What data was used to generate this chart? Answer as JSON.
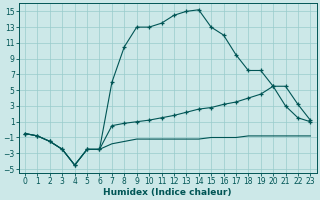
{
  "bg_color": "#cce8e8",
  "grid_color": "#99cccc",
  "line_color": "#005555",
  "xlabel": "Humidex (Indice chaleur)",
  "xlim": [
    -0.5,
    23.5
  ],
  "ylim": [
    -5.5,
    16.0
  ],
  "xticks": [
    0,
    1,
    2,
    3,
    4,
    5,
    6,
    7,
    8,
    9,
    10,
    11,
    12,
    13,
    14,
    15,
    16,
    17,
    18,
    19,
    20,
    21,
    22,
    23
  ],
  "yticks": [
    -5,
    -3,
    -1,
    1,
    3,
    5,
    7,
    9,
    11,
    13,
    15
  ],
  "curve1_x": [
    0,
    1,
    2,
    3,
    4,
    5,
    6,
    7,
    8,
    9,
    10,
    11,
    12,
    13,
    14,
    15,
    16,
    17,
    18,
    19,
    20,
    21,
    22,
    23
  ],
  "curve1_y": [
    -0.5,
    -0.8,
    -1.5,
    -2.5,
    -4.5,
    -2.5,
    -2.5,
    6.0,
    10.5,
    13.0,
    13.0,
    13.5,
    14.5,
    15.0,
    15.2,
    13.0,
    12.0,
    9.5,
    7.5,
    7.5,
    5.5,
    3.0,
    1.5,
    1.0
  ],
  "curve2_x": [
    0,
    1,
    2,
    3,
    4,
    5,
    6,
    7,
    8,
    9,
    10,
    11,
    12,
    13,
    14,
    15,
    16,
    17,
    18,
    19,
    20,
    21,
    22,
    23
  ],
  "curve2_y": [
    -0.5,
    -0.8,
    -1.5,
    -2.5,
    -4.5,
    -2.5,
    -2.5,
    0.5,
    0.8,
    1.0,
    1.2,
    1.5,
    1.8,
    2.2,
    2.6,
    2.8,
    3.2,
    3.5,
    4.0,
    4.5,
    5.5,
    5.5,
    3.2,
    1.2
  ],
  "curve3_x": [
    0,
    1,
    2,
    3,
    4,
    5,
    6,
    7,
    8,
    9,
    10,
    11,
    12,
    13,
    14,
    15,
    16,
    17,
    18,
    19,
    20,
    21,
    22,
    23
  ],
  "curve3_y": [
    -0.5,
    -0.8,
    -1.5,
    -2.5,
    -4.5,
    -2.5,
    -2.5,
    -1.8,
    -1.5,
    -1.2,
    -1.2,
    -1.2,
    -1.2,
    -1.2,
    -1.2,
    -1.0,
    -1.0,
    -1.0,
    -0.8,
    -0.8,
    -0.8,
    -0.8,
    -0.8,
    -0.8
  ]
}
